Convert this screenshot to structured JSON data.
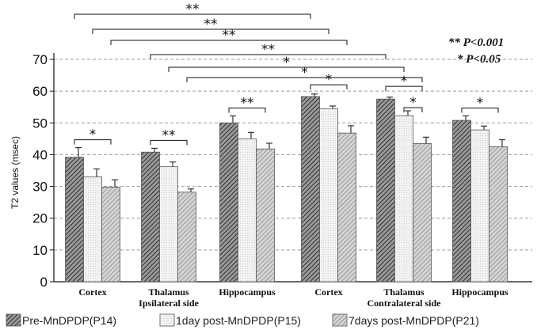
{
  "chart_data": {
    "type": "bar",
    "ylabel": "T2 values (msec)",
    "ylim": [
      0,
      70
    ],
    "yticks": [
      0,
      10,
      20,
      30,
      40,
      50,
      60,
      70
    ],
    "grid": "horizontal-dashed",
    "categories": [
      "Cortex",
      "Thalamus",
      "Hippocampus",
      "Cortex",
      "Thalamus",
      "Hippocampus"
    ],
    "groups": [
      {
        "label": "Ipsilateral side",
        "categories": [
          0,
          1,
          2
        ]
      },
      {
        "label": "Contralateral side",
        "categories": [
          3,
          4,
          5
        ]
      }
    ],
    "series": [
      {
        "name": "Pre-MnDPDP(P14)",
        "color": "#8a8a8a",
        "pattern": "dense-diagonal",
        "values": [
          39.2,
          40.8,
          50.0,
          58.3,
          57.5,
          50.8
        ],
        "errors": [
          3.0,
          1.2,
          2.2,
          0.8,
          0.6,
          1.4
        ]
      },
      {
        "name": "1day post-MnDPDP(P15)",
        "color": "#ececec",
        "pattern": "light",
        "values": [
          33.0,
          36.2,
          45.0,
          54.5,
          52.3,
          47.8
        ],
        "errors": [
          2.5,
          1.5,
          2.0,
          0.8,
          1.5,
          1.2
        ]
      },
      {
        "name": "7days post-MnDPDP(P21)",
        "color": "#c4c4c4",
        "pattern": "diagonal",
        "values": [
          29.8,
          28.2,
          41.8,
          46.8,
          43.5,
          42.5
        ],
        "errors": [
          2.3,
          1.0,
          1.8,
          2.3,
          2.0,
          2.2
        ]
      }
    ],
    "significance_legend": [
      {
        "symbol": "**",
        "text": "P<0.001"
      },
      {
        "symbol": "*",
        "text": "P<0.05"
      }
    ],
    "significance": [
      {
        "from": [
          0,
          0
        ],
        "to": [
          3,
          0
        ],
        "symbol": "**"
      },
      {
        "from": [
          0,
          1
        ],
        "to": [
          3,
          1
        ],
        "symbol": "**"
      },
      {
        "from": [
          0,
          2
        ],
        "to": [
          3,
          2
        ],
        "symbol": "**"
      },
      {
        "from": [
          1,
          0
        ],
        "to": [
          4,
          0
        ],
        "symbol": "**"
      },
      {
        "from": [
          1,
          1
        ],
        "to": [
          4,
          1
        ],
        "symbol": "*"
      },
      {
        "from": [
          1,
          2
        ],
        "to": [
          4,
          2
        ],
        "symbol": "*"
      },
      {
        "from": [
          3,
          0
        ],
        "to": [
          3,
          2
        ],
        "symbol": "*"
      },
      {
        "from": [
          4,
          0
        ],
        "to": [
          4,
          2
        ],
        "symbol": "*"
      },
      {
        "from": [
          4,
          1
        ],
        "to": [
          4,
          2
        ],
        "symbol": "*"
      },
      {
        "from": [
          0,
          0
        ],
        "to": [
          0,
          2
        ],
        "symbol": "*"
      },
      {
        "from": [
          1,
          0
        ],
        "to": [
          1,
          2
        ],
        "symbol": "**"
      },
      {
        "from": [
          2,
          0
        ],
        "to": [
          2,
          2
        ],
        "symbol": "**"
      },
      {
        "from": [
          5,
          0
        ],
        "to": [
          5,
          2
        ],
        "symbol": "*"
      }
    ]
  }
}
